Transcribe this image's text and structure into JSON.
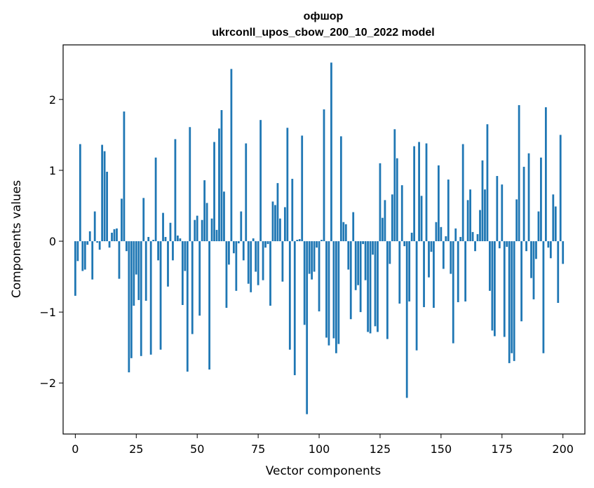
{
  "chart_data": {
    "type": "bar",
    "title": "офшор",
    "subtitle": "ukrconll_upos_cbow_200_10_2022 model",
    "xlabel": "Vector components",
    "ylabel": "Components values",
    "xlim": [
      -5,
      209
    ],
    "ylim": [
      -2.72,
      2.77
    ],
    "xticks": [
      0,
      25,
      50,
      75,
      100,
      125,
      150,
      175,
      200
    ],
    "yticks": [
      -2,
      -1,
      0,
      1,
      2
    ],
    "xtick_labels": [
      "0",
      "25",
      "50",
      "75",
      "100",
      "125",
      "150",
      "175",
      "200"
    ],
    "ytick_labels": [
      "−2",
      "−1",
      "0",
      "1",
      "2"
    ],
    "grid": false,
    "bar_color": "#1f77b4",
    "values": [
      -0.77,
      -0.28,
      1.37,
      -0.42,
      -0.4,
      -0.05,
      0.14,
      -0.54,
      0.42,
      -0.02,
      -0.12,
      1.36,
      1.27,
      0.98,
      -0.09,
      0.12,
      0.17,
      0.18,
      -0.53,
      0.6,
      1.83,
      -0.14,
      -1.85,
      -1.65,
      -0.91,
      -0.47,
      -0.83,
      -1.62,
      0.61,
      -0.84,
      0.06,
      -1.6,
      0.02,
      1.18,
      -0.27,
      -1.53,
      0.4,
      0.06,
      -0.64,
      0.26,
      -0.27,
      1.44,
      0.08,
      0.04,
      -0.9,
      -0.42,
      -1.84,
      1.61,
      -1.31,
      0.3,
      0.36,
      -1.05,
      0.3,
      0.86,
      0.54,
      -1.81,
      0.32,
      1.4,
      0.16,
      1.59,
      1.85,
      0.7,
      -0.94,
      -0.33,
      2.43,
      -0.17,
      -0.7,
      -0.03,
      0.42,
      -0.27,
      1.38,
      -0.6,
      -0.72,
      0.04,
      -0.43,
      -0.62,
      1.71,
      -0.55,
      -0.09,
      -0.04,
      -0.91,
      0.56,
      0.51,
      0.82,
      0.32,
      -0.57,
      0.48,
      1.6,
      -1.53,
      0.88,
      -1.89,
      0.02,
      0.03,
      1.49,
      -1.18,
      -2.44,
      -0.46,
      -0.54,
      -0.43,
      -0.09,
      -0.99,
      0.02,
      1.86,
      -1.36,
      -1.47,
      2.52,
      -1.37,
      -1.58,
      -1.45,
      1.48,
      0.27,
      0.24,
      -0.4,
      -1.1,
      0.41,
      -0.69,
      -0.62,
      -1.0,
      -0.04,
      -0.55,
      -1.28,
      -1.3,
      -0.19,
      -1.2,
      -1.28,
      1.1,
      0.33,
      0.58,
      -1.38,
      -0.32,
      0.66,
      1.58,
      1.17,
      -0.88,
      0.79,
      -0.07,
      -2.21,
      -0.85,
      0.12,
      1.34,
      -1.54,
      1.4,
      0.64,
      -0.93,
      1.38,
      -0.51,
      -0.15,
      -0.94,
      0.27,
      1.07,
      0.2,
      -0.39,
      0.07,
      0.87,
      -0.46,
      -1.44,
      0.18,
      -0.86,
      0.06,
      1.37,
      -0.85,
      0.58,
      0.73,
      0.13,
      -0.14,
      0.1,
      0.44,
      1.14,
      0.73,
      1.65,
      -0.7,
      -1.26,
      -1.34,
      0.92,
      -0.1,
      0.8,
      -1.35,
      -0.08,
      -1.72,
      -1.58,
      -1.69,
      0.59,
      1.92,
      -1.13,
      1.05,
      -0.14,
      1.24,
      -0.52,
      -0.82,
      -0.25,
      0.42,
      1.18,
      -1.58,
      1.89,
      -0.09,
      -0.24,
      0.66,
      0.49,
      -0.87,
      1.5,
      -0.32
    ]
  }
}
